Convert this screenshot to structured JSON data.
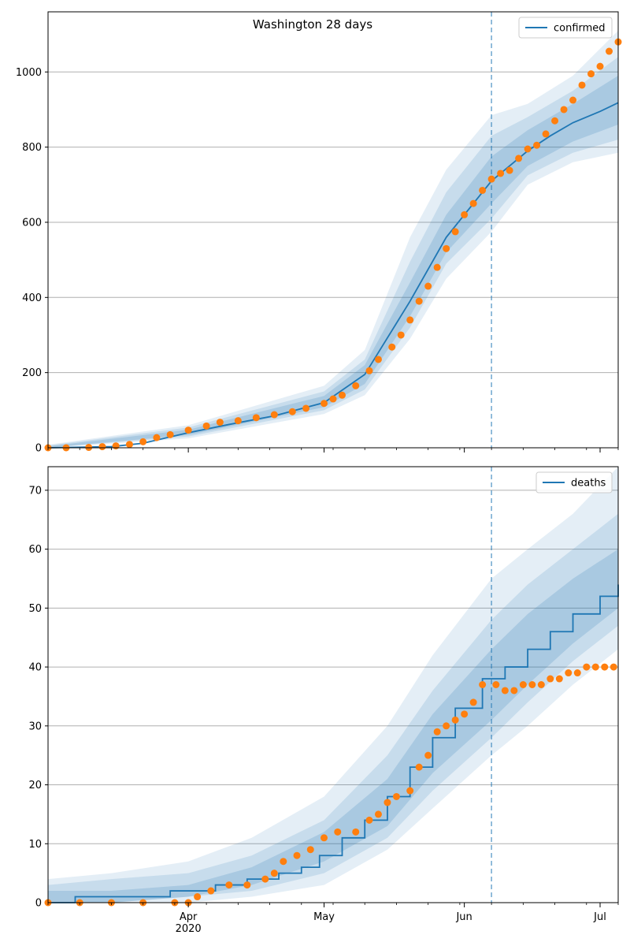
{
  "figure_title": "Washington 28 days",
  "colors": {
    "model": "#1f77b4",
    "observed": "#ff7f0e",
    "band": "#1f77b4",
    "grid": "#b0b0b0",
    "forecast_line": "#1f77b4"
  },
  "x_axis": {
    "start_date": "2020-03-01",
    "end_date": "2020-07-05",
    "month_labels": [
      {
        "date": "2020-04-01",
        "label": "Apr"
      },
      {
        "date": "2020-05-01",
        "label": "May"
      },
      {
        "date": "2020-06-01",
        "label": "Jun"
      },
      {
        "date": "2020-07-01",
        "label": "Jul"
      }
    ],
    "year_label": "2020",
    "year_label_date": "2020-04-01",
    "forecast_start": "2020-06-07"
  },
  "chart_data": [
    {
      "type": "line",
      "legend": [
        "confirmed"
      ],
      "legend_position": "top-right",
      "grid": "y",
      "ylim": [
        0,
        1160
      ],
      "yticks": [
        0,
        200,
        400,
        600,
        800,
        1000
      ],
      "series": [
        {
          "name": "confirmed",
          "kind": "line",
          "points": [
            [
              "2020-03-01",
              0
            ],
            [
              "2020-03-15",
              3
            ],
            [
              "2020-03-22",
              12
            ],
            [
              "2020-04-01",
              40
            ],
            [
              "2020-04-10",
              62
            ],
            [
              "2020-04-20",
              85
            ],
            [
              "2020-05-01",
              120
            ],
            [
              "2020-05-10",
              195
            ],
            [
              "2020-05-20",
              390
            ],
            [
              "2020-05-28",
              560
            ],
            [
              "2020-06-07",
              710
            ],
            [
              "2020-06-10",
              740
            ],
            [
              "2020-06-15",
              790
            ],
            [
              "2020-06-20",
              830
            ],
            [
              "2020-06-25",
              865
            ],
            [
              "2020-07-01",
              895
            ],
            [
              "2020-07-05",
              918
            ]
          ]
        },
        {
          "name": "observed",
          "kind": "scatter",
          "points": [
            [
              "2020-03-01",
              0
            ],
            [
              "2020-03-05",
              0
            ],
            [
              "2020-03-10",
              1
            ],
            [
              "2020-03-13",
              3
            ],
            [
              "2020-03-16",
              5
            ],
            [
              "2020-03-19",
              9
            ],
            [
              "2020-03-22",
              16
            ],
            [
              "2020-03-25",
              27
            ],
            [
              "2020-03-28",
              35
            ],
            [
              "2020-04-01",
              47
            ],
            [
              "2020-04-05",
              58
            ],
            [
              "2020-04-08",
              68
            ],
            [
              "2020-04-12",
              72
            ],
            [
              "2020-04-16",
              80
            ],
            [
              "2020-04-20",
              88
            ],
            [
              "2020-04-24",
              96
            ],
            [
              "2020-04-27",
              105
            ],
            [
              "2020-05-01",
              118
            ],
            [
              "2020-05-03",
              130
            ],
            [
              "2020-05-05",
              140
            ],
            [
              "2020-05-08",
              165
            ],
            [
              "2020-05-11",
              205
            ],
            [
              "2020-05-13",
              235
            ],
            [
              "2020-05-16",
              268
            ],
            [
              "2020-05-18",
              300
            ],
            [
              "2020-05-20",
              340
            ],
            [
              "2020-05-22",
              390
            ],
            [
              "2020-05-24",
              430
            ],
            [
              "2020-05-26",
              480
            ],
            [
              "2020-05-28",
              530
            ],
            [
              "2020-05-30",
              575
            ],
            [
              "2020-06-01",
              620
            ],
            [
              "2020-06-03",
              650
            ],
            [
              "2020-06-05",
              685
            ],
            [
              "2020-06-07",
              715
            ],
            [
              "2020-06-09",
              730
            ],
            [
              "2020-06-11",
              738
            ],
            [
              "2020-06-13",
              770
            ],
            [
              "2020-06-15",
              795
            ],
            [
              "2020-06-17",
              805
            ],
            [
              "2020-06-19",
              835
            ],
            [
              "2020-06-21",
              870
            ],
            [
              "2020-06-23",
              900
            ],
            [
              "2020-06-25",
              925
            ],
            [
              "2020-06-27",
              965
            ],
            [
              "2020-06-29",
              995
            ],
            [
              "2020-07-01",
              1015
            ],
            [
              "2020-07-03",
              1055
            ],
            [
              "2020-07-05",
              1080
            ]
          ]
        },
        {
          "name": "forecast band (outer)",
          "kind": "band",
          "points": [
            [
              "2020-03-01",
              0,
              8
            ],
            [
              "2020-04-01",
              25,
              60
            ],
            [
              "2020-05-01",
              90,
              165
            ],
            [
              "2020-05-10",
              140,
              260
            ],
            [
              "2020-05-20",
              290,
              560
            ],
            [
              "2020-05-28",
              450,
              740
            ],
            [
              "2020-06-07",
              575,
              885
            ],
            [
              "2020-06-15",
              700,
              915
            ],
            [
              "2020-06-25",
              760,
              990
            ],
            [
              "2020-07-05",
              785,
              1110
            ]
          ]
        },
        {
          "name": "forecast band (middle)",
          "kind": "band",
          "points": [
            [
              "2020-03-01",
              0,
              6
            ],
            [
              "2020-04-01",
              30,
              54
            ],
            [
              "2020-05-01",
              100,
              150
            ],
            [
              "2020-05-10",
              155,
              235
            ],
            [
              "2020-05-20",
              320,
              495
            ],
            [
              "2020-05-28",
              490,
              680
            ],
            [
              "2020-06-07",
              610,
              830
            ],
            [
              "2020-06-15",
              725,
              880
            ],
            [
              "2020-06-25",
              785,
              950
            ],
            [
              "2020-07-05",
              820,
              1040
            ]
          ]
        },
        {
          "name": "forecast band (inner)",
          "kind": "band",
          "points": [
            [
              "2020-03-01",
              0,
              4
            ],
            [
              "2020-04-01",
              34,
              48
            ],
            [
              "2020-05-01",
              108,
              138
            ],
            [
              "2020-05-10",
              170,
              220
            ],
            [
              "2020-05-20",
              350,
              440
            ],
            [
              "2020-05-28",
              520,
              620
            ],
            [
              "2020-06-07",
              650,
              775
            ],
            [
              "2020-06-15",
              750,
              845
            ],
            [
              "2020-06-25",
              815,
              915
            ],
            [
              "2020-07-05",
              860,
              990
            ]
          ]
        }
      ]
    },
    {
      "type": "line",
      "legend": [
        "deaths"
      ],
      "legend_position": "top-right",
      "grid": "y",
      "ylim": [
        0,
        74
      ],
      "yticks": [
        0,
        10,
        20,
        30,
        40,
        50,
        60,
        70
      ],
      "series": [
        {
          "name": "deaths",
          "kind": "step",
          "points": [
            [
              "2020-03-01",
              0
            ],
            [
              "2020-03-07",
              1
            ],
            [
              "2020-03-28",
              2
            ],
            [
              "2020-04-07",
              3
            ],
            [
              "2020-04-14",
              4
            ],
            [
              "2020-04-21",
              5
            ],
            [
              "2020-04-26",
              6
            ],
            [
              "2020-04-30",
              8
            ],
            [
              "2020-05-05",
              11
            ],
            [
              "2020-05-10",
              14
            ],
            [
              "2020-05-15",
              18
            ],
            [
              "2020-05-20",
              23
            ],
            [
              "2020-05-25",
              28
            ],
            [
              "2020-05-30",
              33
            ],
            [
              "2020-06-05",
              38
            ],
            [
              "2020-06-07",
              38
            ],
            [
              "2020-06-10",
              40
            ],
            [
              "2020-06-15",
              43
            ],
            [
              "2020-06-20",
              46
            ],
            [
              "2020-06-25",
              49
            ],
            [
              "2020-07-01",
              52
            ],
            [
              "2020-07-05",
              54
            ]
          ]
        },
        {
          "name": "observed",
          "kind": "scatter",
          "points": [
            [
              "2020-03-01",
              0
            ],
            [
              "2020-03-08",
              0
            ],
            [
              "2020-03-15",
              0
            ],
            [
              "2020-03-22",
              0
            ],
            [
              "2020-03-29",
              0
            ],
            [
              "2020-04-01",
              0
            ],
            [
              "2020-04-03",
              1
            ],
            [
              "2020-04-06",
              2
            ],
            [
              "2020-04-10",
              3
            ],
            [
              "2020-04-14",
              3
            ],
            [
              "2020-04-18",
              4
            ],
            [
              "2020-04-20",
              5
            ],
            [
              "2020-04-22",
              7
            ],
            [
              "2020-04-25",
              8
            ],
            [
              "2020-04-28",
              9
            ],
            [
              "2020-05-01",
              11
            ],
            [
              "2020-05-04",
              12
            ],
            [
              "2020-05-08",
              12
            ],
            [
              "2020-05-11",
              14
            ],
            [
              "2020-05-13",
              15
            ],
            [
              "2020-05-15",
              17
            ],
            [
              "2020-05-17",
              18
            ],
            [
              "2020-05-20",
              19
            ],
            [
              "2020-05-22",
              23
            ],
            [
              "2020-05-24",
              25
            ],
            [
              "2020-05-26",
              29
            ],
            [
              "2020-05-28",
              30
            ],
            [
              "2020-05-30",
              31
            ],
            [
              "2020-06-01",
              32
            ],
            [
              "2020-06-03",
              34
            ],
            [
              "2020-06-05",
              37
            ],
            [
              "2020-06-08",
              37
            ],
            [
              "2020-06-10",
              36
            ],
            [
              "2020-06-12",
              36
            ],
            [
              "2020-06-14",
              37
            ],
            [
              "2020-06-16",
              37
            ],
            [
              "2020-06-18",
              37
            ],
            [
              "2020-06-20",
              38
            ],
            [
              "2020-06-22",
              38
            ],
            [
              "2020-06-24",
              39
            ],
            [
              "2020-06-26",
              39
            ],
            [
              "2020-06-28",
              40
            ],
            [
              "2020-06-30",
              40
            ],
            [
              "2020-07-02",
              40
            ],
            [
              "2020-07-04",
              40
            ]
          ]
        },
        {
          "name": "forecast band (outer)",
          "kind": "band",
          "points": [
            [
              "2020-03-01",
              0,
              4
            ],
            [
              "2020-03-15",
              0,
              5
            ],
            [
              "2020-04-01",
              0,
              7
            ],
            [
              "2020-04-15",
              1,
              11
            ],
            [
              "2020-05-01",
              3,
              18
            ],
            [
              "2020-05-15",
              9,
              30
            ],
            [
              "2020-05-25",
              16,
              42
            ],
            [
              "2020-06-07",
              25,
              55
            ],
            [
              "2020-06-15",
              30,
              60
            ],
            [
              "2020-06-25",
              37,
              66
            ],
            [
              "2020-07-05",
              43,
              74
            ]
          ]
        },
        {
          "name": "forecast band (middle)",
          "kind": "band",
          "points": [
            [
              "2020-03-01",
              0,
              3
            ],
            [
              "2020-03-15",
              0,
              4
            ],
            [
              "2020-04-01",
              1,
              5
            ],
            [
              "2020-04-15",
              2,
              8
            ],
            [
              "2020-05-01",
              5,
              14
            ],
            [
              "2020-05-15",
              11,
              25
            ],
            [
              "2020-05-25",
              19,
              36
            ],
            [
              "2020-06-07",
              28,
              48
            ],
            [
              "2020-06-15",
              34,
              54
            ],
            [
              "2020-06-25",
              41,
              60
            ],
            [
              "2020-07-05",
              47,
              66
            ]
          ]
        },
        {
          "name": "forecast band (inner)",
          "kind": "band",
          "points": [
            [
              "2020-03-01",
              0,
              2
            ],
            [
              "2020-03-15",
              0,
              2
            ],
            [
              "2020-04-01",
              1,
              3
            ],
            [
              "2020-04-15",
              3,
              6
            ],
            [
              "2020-05-01",
              7,
              12
            ],
            [
              "2020-05-15",
              13,
              21
            ],
            [
              "2020-05-25",
              22,
              32
            ],
            [
              "2020-06-07",
              31,
              43
            ],
            [
              "2020-06-15",
              37,
              49
            ],
            [
              "2020-06-25",
              44,
              55
            ],
            [
              "2020-07-05",
              50,
              60
            ]
          ]
        }
      ]
    }
  ]
}
